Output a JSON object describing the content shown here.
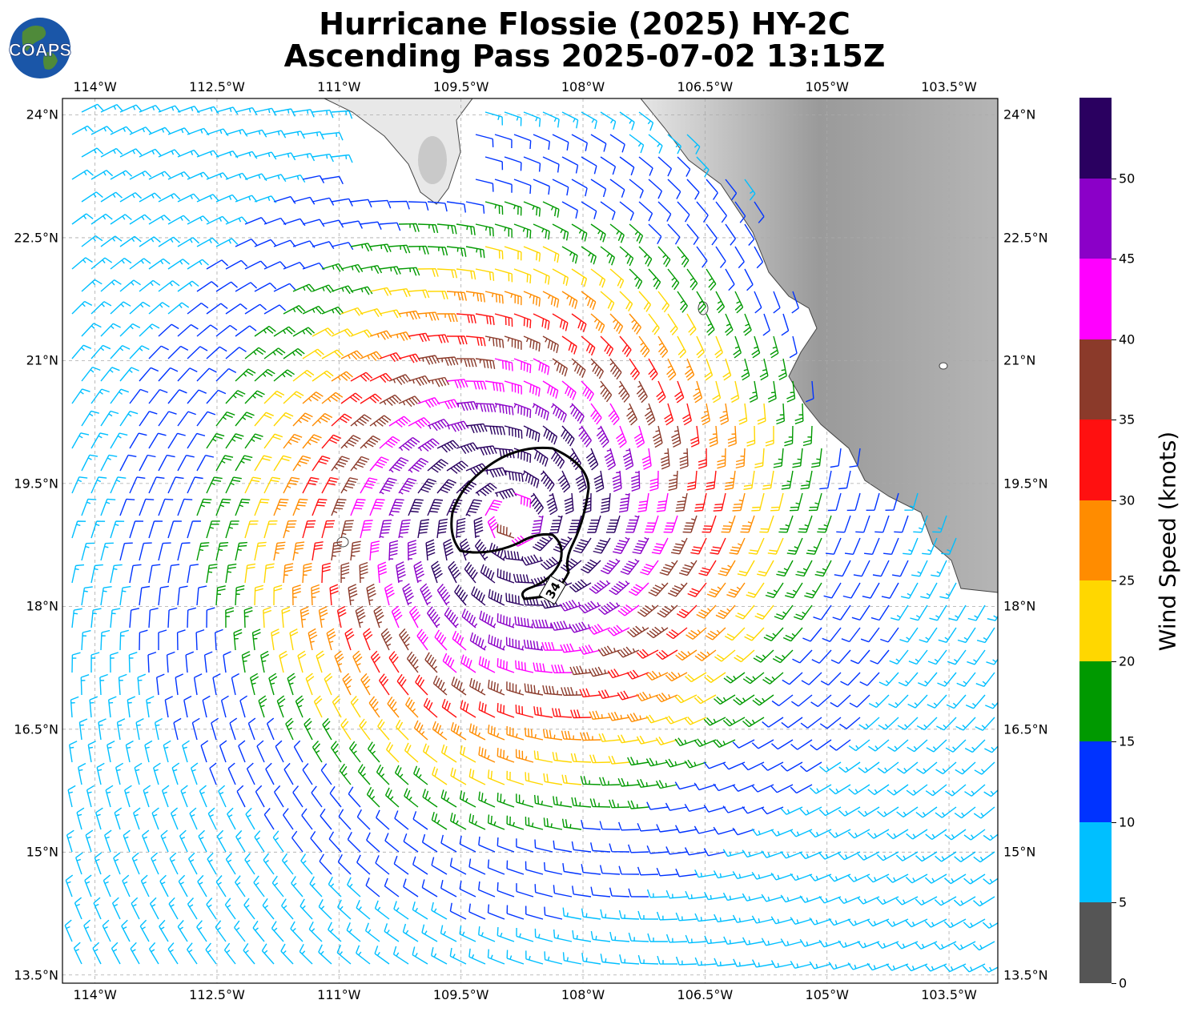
{
  "title_line1": "Hurricane Flossie (2025) HY-2C",
  "title_line2": "Ascending Pass 2025-07-02 13:15Z",
  "logo_text": "COAPS",
  "lon_ticks": [
    "114°W",
    "112.5°W",
    "111°W",
    "109.5°W",
    "108°W",
    "106.5°W",
    "105°W",
    "103.5°W"
  ],
  "lat_ticks": [
    "24°N",
    "22.5°N",
    "21°N",
    "19.5°N",
    "18°N",
    "16.5°N",
    "15°N",
    "13.5°N"
  ],
  "colorbar": {
    "label": "Wind Speed (knots)",
    "ticks": [
      "0",
      "5",
      "10",
      "15",
      "20",
      "25",
      "30",
      "35",
      "40",
      "45",
      "50"
    ],
    "colors": [
      "#555555",
      "#00bfff",
      "#0033ff",
      "#009900",
      "#ffd700",
      "#ff8c00",
      "#ff1010",
      "#8b3a2a",
      "#ff00ff",
      "#8b00c8",
      "#2a0060"
    ]
  },
  "contour_label": "34",
  "storm_center": {
    "lon": -108.85,
    "lat": 19.05
  },
  "map_extent": {
    "lon_min": -114.4,
    "lon_max": -102.9,
    "lat_min": 13.4,
    "lat_max": 24.2
  }
}
